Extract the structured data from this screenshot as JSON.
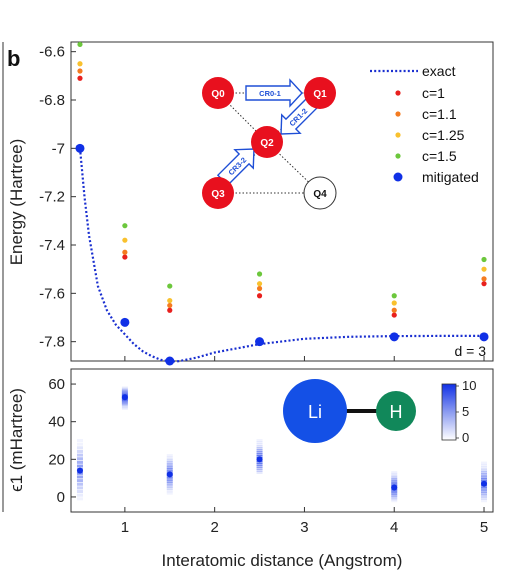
{
  "panel_label": "b",
  "d_label": "d = 3",
  "circuit": {
    "nodes": [
      {
        "id": "q0",
        "label": "Q0",
        "filled": true
      },
      {
        "id": "q1",
        "label": "Q1",
        "filled": true
      },
      {
        "id": "q2",
        "label": "Q2",
        "filled": true
      },
      {
        "id": "q3",
        "label": "Q3",
        "filled": true
      },
      {
        "id": "q4",
        "label": "Q4",
        "filled": false
      }
    ],
    "gates": [
      {
        "id": "cr01",
        "label": "CR0-1"
      },
      {
        "id": "cr12",
        "label": "CR1-2"
      },
      {
        "id": "cr32",
        "label": "CR3-2"
      }
    ]
  },
  "molecule": {
    "atom1": "Li",
    "atom2": "H"
  },
  "colors": {
    "c1": "#e8201e",
    "c1_1": "#f47b20",
    "c1_25": "#f9c12e",
    "c1_5": "#6cc73c",
    "mitigated": "#1030e6",
    "exact": "#1a2fd0",
    "qubit": "#e8101e",
    "li": "#1450e6",
    "h": "#11885a"
  },
  "colorbar": {
    "ticks": [
      "10",
      "5",
      "0"
    ]
  },
  "chart_data": [
    {
      "type": "scatter",
      "xlabel": "",
      "ylabel": "Energy (Hartree)",
      "xlim": [
        0.4,
        5.1
      ],
      "ylim": [
        -7.88,
        -6.56
      ],
      "yticks": [
        -6.6,
        -6.8,
        -7.0,
        -7.2,
        -7.4,
        -7.6,
        -7.8
      ],
      "ytick_labels": [
        "-6.6",
        "-6.8",
        "-7",
        "-7.2",
        "-7.4",
        "-7.6",
        "-7.8"
      ],
      "legend_position": "top-right",
      "x": [
        0.5,
        1.0,
        1.5,
        2.5,
        4.0,
        5.0
      ],
      "series": [
        {
          "name": "exact",
          "style": "dotted-line",
          "x": [
            0.5,
            0.55,
            0.6,
            0.7,
            0.8,
            0.9,
            1.0,
            1.1,
            1.2,
            1.3,
            1.4,
            1.5,
            1.6,
            1.8,
            2.0,
            2.5,
            3.0,
            3.5,
            4.0,
            4.5,
            5.0
          ],
          "values": [
            -7.0,
            -7.2,
            -7.36,
            -7.57,
            -7.67,
            -7.73,
            -7.77,
            -7.81,
            -7.84,
            -7.86,
            -7.875,
            -7.882,
            -7.881,
            -7.866,
            -7.845,
            -7.81,
            -7.788,
            -7.78,
            -7.777,
            -7.776,
            -7.776
          ]
        },
        {
          "name": "c=1",
          "values": [
            -6.71,
            -7.45,
            -7.67,
            -7.61,
            -7.69,
            -7.56
          ]
        },
        {
          "name": "c=1.1",
          "values": [
            -6.68,
            -7.43,
            -7.65,
            -7.58,
            -7.67,
            -7.54
          ]
        },
        {
          "name": "c=1.25",
          "values": [
            -6.65,
            -7.38,
            -7.63,
            -7.56,
            -7.64,
            -7.5
          ]
        },
        {
          "name": "c=1.5",
          "values": [
            -6.57,
            -7.32,
            -7.57,
            -7.52,
            -7.61,
            -7.46
          ]
        },
        {
          "name": "mitigated",
          "values": [
            -7.0,
            -7.72,
            -7.88,
            -7.8,
            -7.78,
            -7.78
          ]
        }
      ]
    },
    {
      "type": "scatter",
      "xlabel": "Interatomic distance (Angstrom)",
      "ylabel": "ϵ1 (mHartree)",
      "xlim": [
        0.4,
        5.1
      ],
      "ylim": [
        -8,
        68
      ],
      "xticks": [
        1,
        2,
        3,
        4,
        5
      ],
      "xtick_labels": [
        "1",
        "2",
        "3",
        "4",
        "5"
      ],
      "yticks": [
        0,
        20,
        40,
        60
      ],
      "ytick_labels": [
        "0",
        "20",
        "40",
        "60"
      ],
      "colorbar_range": [
        0,
        10
      ],
      "x": [
        0.5,
        1.0,
        1.5,
        2.5,
        4.0,
        5.0
      ],
      "values": [
        14,
        53,
        12,
        20,
        5,
        7
      ],
      "spread_low": [
        -1,
        47,
        2,
        13,
        -2,
        -2
      ],
      "spread_high": [
        30,
        58,
        22,
        30,
        13,
        18
      ]
    }
  ]
}
